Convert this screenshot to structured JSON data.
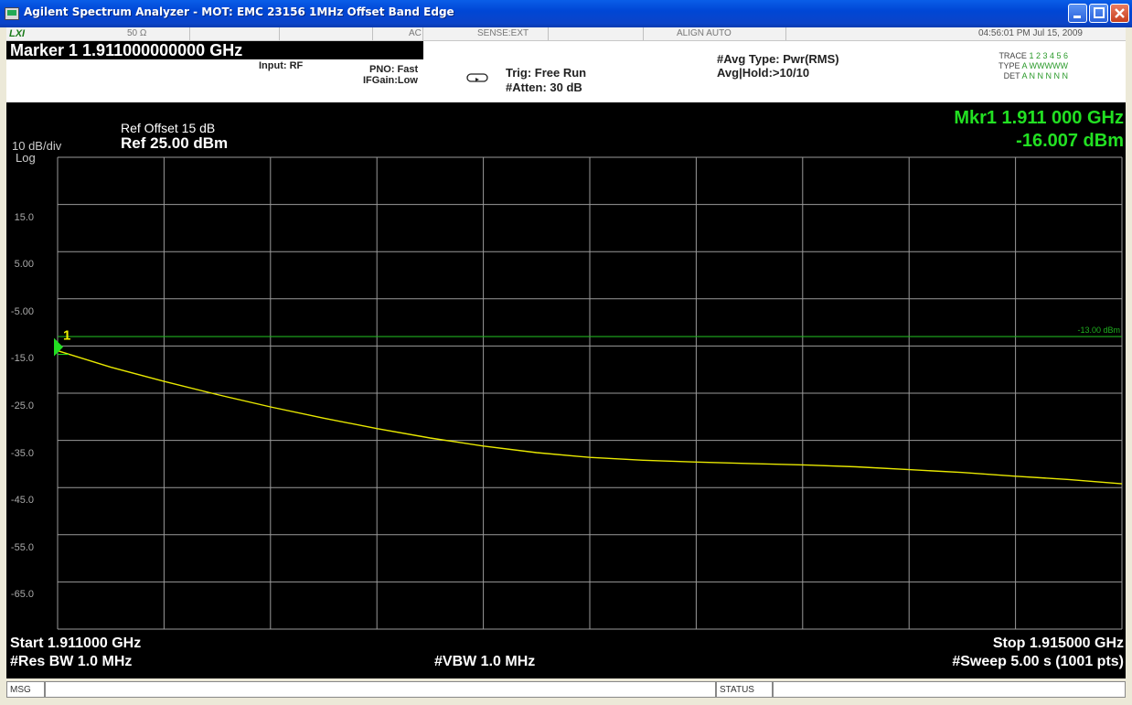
{
  "window": {
    "title": "Agilent Spectrum Analyzer - MOT: EMC 23156 1MHz Offset  Band Edge"
  },
  "header": {
    "lxi": "LXI",
    "impedance": "50 Ω",
    "coupling": "AC",
    "sense": "SENSE:EXT",
    "align": "ALIGN AUTO",
    "datetime": "04:56:01 PM Jul 15, 2009",
    "marker_label": "Marker 1  1.911000000000 GHz",
    "input": "Input: RF",
    "pno": "PNO: Fast",
    "ifgain": "IFGain:Low",
    "trig": "Trig: Free Run",
    "atten": "#Atten: 30 dB",
    "avg_type": "#Avg Type: Pwr(RMS)",
    "avg_hold": "Avg|Hold:>10/10",
    "trace_label": "TRACE",
    "trace_numbers": "1 2 3 4 5 6",
    "type_label": "TYPE",
    "type_value": "A WWWWW",
    "det_label": "DET",
    "det_value": "A N N N N N"
  },
  "display": {
    "scale": "10 dB/div",
    "log": "Log",
    "ref_offset": "Ref Offset 15 dB",
    "ref_level": "Ref 25.00 dBm",
    "marker_readout_freq": "Mkr1 1.911 000 GHz",
    "marker_readout_amp": "-16.007 dBm",
    "marker_number": "1",
    "limit_line_label": "-13.00 dBm",
    "y_ticks": [
      "15.0",
      "5.00",
      "-5.00",
      "-15.0",
      "-25.0",
      "-35.0",
      "-45.0",
      "-55.0",
      "-65.0"
    ],
    "start": "Start 1.911000 GHz",
    "stop": "Stop 1.915000 GHz",
    "res_bw": "#Res BW 1.0 MHz",
    "vbw": "#VBW 1.0 MHz",
    "sweep": "#Sweep  5.00 s (1001 pts)"
  },
  "status": {
    "msg": "MSG",
    "status": "STATUS"
  },
  "colors": {
    "screen_bg": "#000000",
    "trace": "#e8e800",
    "grid": "#9a9a9a",
    "marker_text": "#22e022",
    "limit_line": "#1fb01f"
  },
  "chart_data": {
    "type": "line",
    "title": "",
    "xlabel": "",
    "ylabel": "",
    "xlim": [
      1.911,
      1.915
    ],
    "ylim": [
      -75,
      25
    ],
    "series": [
      {
        "x": [
          1.911,
          1.9112,
          1.9114,
          1.9116,
          1.9118,
          1.912,
          1.9122,
          1.9124,
          1.9126,
          1.9128,
          1.913,
          1.9132,
          1.9134,
          1.9136,
          1.9138,
          1.914,
          1.9142,
          1.9144,
          1.9146,
          1.9148,
          1.915
        ],
        "values": [
          -16.0,
          -19.5,
          -22.5,
          -25.3,
          -27.9,
          -30.3,
          -32.5,
          -34.5,
          -36.2,
          -37.6,
          -38.6,
          -39.2,
          -39.6,
          -39.9,
          -40.2,
          -40.6,
          -41.2,
          -41.8,
          -42.6,
          -43.3,
          -44.2
        ]
      }
    ],
    "limit_line": -13.0,
    "marker": {
      "x": 1.911,
      "y": -16.007
    }
  }
}
